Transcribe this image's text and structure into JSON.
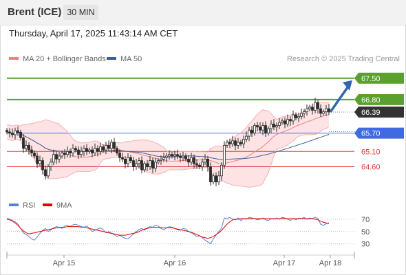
{
  "header": {
    "instrument": "Brent (ICE)",
    "timeframe": "30 MIN"
  },
  "timestamp": "Thursday, April 17, 2025 11:43:14 AM CET",
  "legend": {
    "ma20_bb": "MA 20 + Bollinger Bands",
    "ma50": "MA 50",
    "credit": "Research © 2025 Trading Central"
  },
  "rsi_legend": {
    "rsi": "RSI",
    "ma9": "9MA"
  },
  "colors": {
    "resistance": "#5aa02c",
    "current": "#333333",
    "pivot": "#4169e1",
    "support": "#e03a3a",
    "ma20": "#f08080",
    "ma50": "#3a5f9e",
    "band_fill": "#fde3e3",
    "arrow": "#2e66b0",
    "candle_up": "#2b2b2b"
  },
  "chart_data": {
    "type": "candlestick",
    "x_tick_labels": [
      "Apr 15",
      "Apr 16",
      "Apr 17",
      "Apr 18"
    ],
    "y_range": [
      63.8,
      67.9
    ],
    "closes": [
      65.74,
      65.7,
      65.65,
      65.78,
      65.73,
      65.55,
      65.2,
      65.3,
      65.15,
      65.05,
      64.95,
      64.7,
      64.8,
      64.5,
      64.3,
      64.6,
      64.75,
      65.0,
      64.85,
      64.95,
      65.05,
      65.0,
      65.1,
      65.05,
      65.2,
      65.15,
      65.0,
      65.1,
      65.2,
      65.1,
      65.15,
      65.05,
      65.2,
      65.1,
      65.25,
      65.15,
      65.3,
      65.2,
      65.4,
      65.2,
      65.05,
      64.9,
      64.85,
      64.7,
      64.9,
      64.8,
      64.6,
      64.7,
      64.8,
      64.5,
      64.7,
      64.6,
      64.8,
      64.55,
      64.75,
      64.8,
      64.85,
      64.9,
      64.95,
      65.0,
      64.95,
      65.0,
      64.95,
      64.9,
      64.95,
      64.85,
      64.75,
      64.9,
      64.7,
      64.65,
      64.6,
      64.75,
      64.85,
      64.6,
      64.1,
      64.3,
      64.1,
      64.3,
      64.65,
      65.3,
      65.4,
      65.35,
      65.45,
      65.3,
      65.4,
      65.35,
      65.5,
      65.6,
      65.8,
      65.7,
      65.95,
      65.9,
      65.8,
      65.95,
      65.7,
      65.85,
      66.0,
      65.9,
      65.95,
      66.05,
      66.1,
      66.0,
      66.15,
      66.1,
      66.3,
      66.2,
      66.25,
      66.35,
      66.4,
      66.5,
      66.55,
      66.45,
      66.7,
      66.5,
      66.35,
      66.4,
      66.5,
      66.39
    ],
    "ma50_end": 65.75,
    "levels": [
      {
        "label": "67.50",
        "value": 67.5,
        "kind": "resistance"
      },
      {
        "label": "66.80",
        "value": 66.8,
        "kind": "resistance"
      },
      {
        "label": "66.39",
        "value": 66.39,
        "kind": "current"
      },
      {
        "label": "65.70",
        "value": 65.7,
        "kind": "pivot"
      },
      {
        "label": "65.10",
        "value": 65.1,
        "kind": "support"
      },
      {
        "label": "64.60",
        "value": 64.6,
        "kind": "support"
      }
    ],
    "rsi": {
      "ticks": [
        70,
        50,
        30
      ],
      "y_range": [
        15,
        80
      ],
      "series": [
        72,
        70,
        68,
        66,
        62,
        55,
        48,
        45,
        42,
        38,
        36,
        41,
        47,
        52,
        55,
        50,
        53,
        56,
        58,
        57,
        55,
        59,
        60,
        58,
        61,
        62,
        60,
        58,
        57,
        59,
        55,
        50,
        52,
        54,
        56,
        53,
        48,
        50,
        47,
        45,
        42,
        44,
        41,
        39,
        38,
        42,
        46,
        50,
        53,
        55,
        52,
        56,
        58,
        57,
        60,
        59,
        55,
        53,
        56,
        58,
        57,
        55,
        53,
        52,
        55,
        54,
        50,
        48,
        45,
        42,
        43,
        40,
        36,
        33,
        30,
        38,
        44,
        50,
        56,
        72,
        71,
        73,
        70,
        69,
        72,
        68,
        71,
        70,
        73,
        72,
        71,
        69,
        70,
        72,
        69,
        68,
        71,
        70,
        72,
        70,
        73,
        72,
        70,
        68,
        71,
        69,
        72,
        71,
        73,
        70,
        72,
        71,
        73,
        71,
        62,
        60,
        63,
        64
      ],
      "ma9": [
        70,
        69,
        67,
        64,
        60,
        55,
        51,
        48,
        46,
        47,
        48,
        49,
        50,
        51,
        52,
        53,
        54,
        55,
        56,
        56,
        57,
        57,
        58,
        58,
        58,
        58,
        58,
        57,
        57,
        56,
        55,
        54,
        53,
        52,
        51,
        50,
        49,
        48,
        47,
        46,
        45,
        44,
        44,
        44,
        45,
        46,
        47,
        48,
        50,
        52,
        54,
        55,
        56,
        57,
        57,
        57,
        56,
        56,
        56,
        56,
        56,
        55,
        54,
        53,
        52,
        51,
        50,
        49,
        47,
        45,
        43,
        41,
        40,
        39,
        40,
        42,
        45,
        48,
        52,
        57,
        62,
        66,
        69,
        70,
        70,
        71,
        71,
        71,
        71,
        71,
        71,
        71,
        71,
        71,
        71,
        71,
        71,
        71,
        71,
        71,
        71,
        71,
        71,
        71,
        71,
        71,
        71,
        71,
        71,
        71,
        71,
        71,
        70,
        69,
        67,
        65,
        64,
        63
      ]
    }
  }
}
